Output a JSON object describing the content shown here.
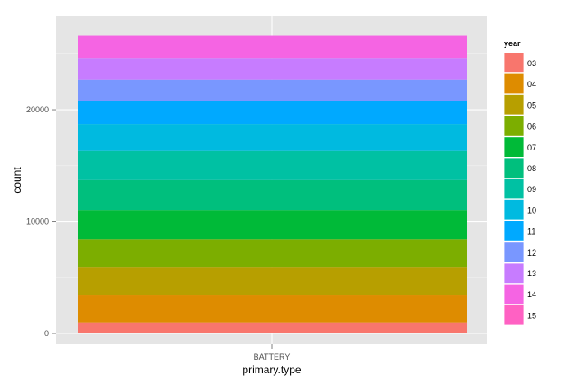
{
  "chart_data": {
    "type": "bar",
    "stacked": true,
    "categories": [
      "BATTERY"
    ],
    "xlabel": "primary.type",
    "ylabel": "count",
    "ylim": [
      0,
      27000
    ],
    "y_ticks": [
      0,
      10000,
      20000
    ],
    "grid": true,
    "legend": {
      "title": "year",
      "position": "right"
    },
    "series": [
      {
        "name": "03",
        "values": [
          1000
        ],
        "color": "#F8766D"
      },
      {
        "name": "04",
        "values": [
          2400
        ],
        "color": "#DE8C00"
      },
      {
        "name": "05",
        "values": [
          2500
        ],
        "color": "#B79F00"
      },
      {
        "name": "06",
        "values": [
          2500
        ],
        "color": "#7CAE00"
      },
      {
        "name": "07",
        "values": [
          2600
        ],
        "color": "#00BA38"
      },
      {
        "name": "08",
        "values": [
          2700
        ],
        "color": "#00BF7D"
      },
      {
        "name": "09",
        "values": [
          2600
        ],
        "color": "#00C1A3"
      },
      {
        "name": "10",
        "values": [
          2400
        ],
        "color": "#00BAE0"
      },
      {
        "name": "11",
        "values": [
          2100
        ],
        "color": "#00A9FF"
      },
      {
        "name": "12",
        "values": [
          1900
        ],
        "color": "#7997FF"
      },
      {
        "name": "13",
        "values": [
          1900
        ],
        "color": "#C77CFF"
      },
      {
        "name": "14",
        "values": [
          2000
        ],
        "color": "#F564E3"
      },
      {
        "name": "15",
        "values": [
          0
        ],
        "color": "#FF61C3"
      }
    ]
  }
}
